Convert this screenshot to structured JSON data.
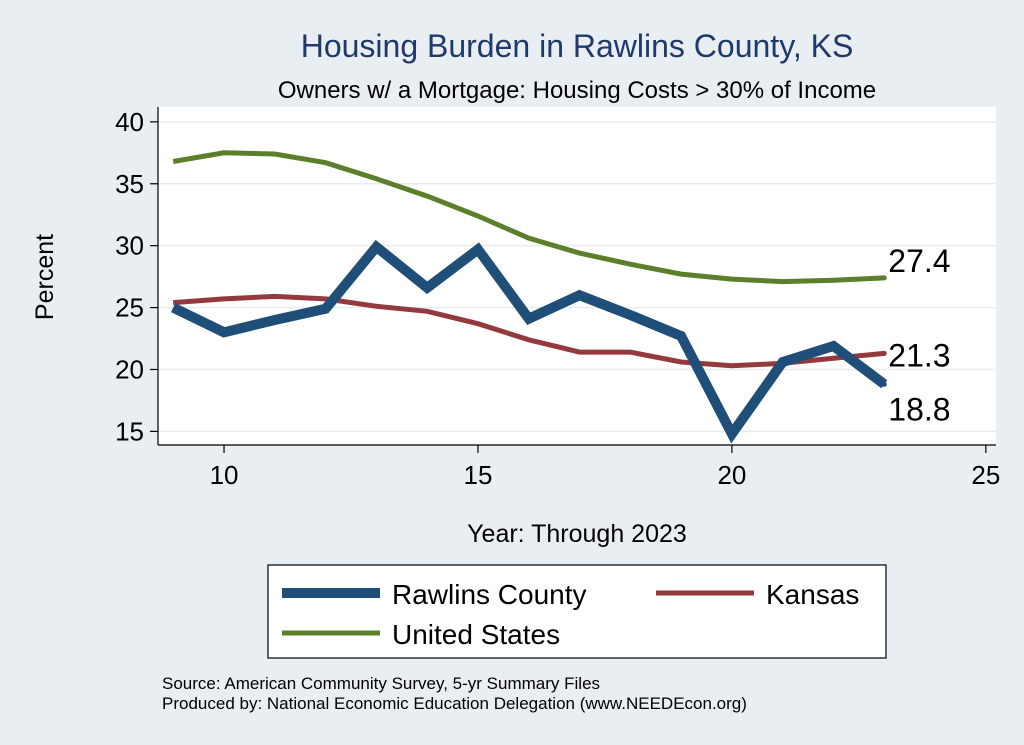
{
  "chart_data": {
    "type": "line",
    "title": "Housing Burden in Rawlins County, KS",
    "subtitle": "Owners w/ a Mortgage: Housing Costs > 30% of Income",
    "xlabel": "Year: Through 2023",
    "ylabel": "Percent",
    "xlim": [
      8.7,
      25.2
    ],
    "ylim": [
      13.9,
      41.2
    ],
    "xticks": [
      10,
      15,
      20,
      25
    ],
    "yticks": [
      15,
      20,
      25,
      30,
      35,
      40
    ],
    "grid": true,
    "legend_position": "bottom",
    "series": [
      {
        "name": "Rawlins County",
        "color": "#1f4e79",
        "x": [
          9,
          10,
          11,
          12,
          13,
          14,
          15,
          16,
          17,
          18,
          19,
          20,
          21,
          22,
          23
        ],
        "values": [
          25.0,
          23.0,
          24.0,
          24.9,
          29.9,
          26.6,
          29.7,
          24.1,
          26.0,
          24.4,
          22.7,
          14.8,
          20.6,
          21.9,
          18.8
        ],
        "end_label": "18.8"
      },
      {
        "name": "Kansas",
        "color": "#943a3e",
        "x": [
          9,
          10,
          11,
          12,
          13,
          14,
          15,
          16,
          17,
          18,
          19,
          20,
          21,
          22,
          23
        ],
        "values": [
          25.4,
          25.7,
          25.9,
          25.7,
          25.1,
          24.7,
          23.7,
          22.4,
          21.4,
          21.4,
          20.6,
          20.3,
          20.5,
          20.9,
          21.3
        ],
        "end_label": "21.3"
      },
      {
        "name": "United States",
        "color": "#5b7f2b",
        "x": [
          9,
          10,
          11,
          12,
          13,
          14,
          15,
          16,
          17,
          18,
          19,
          20,
          21,
          22,
          23
        ],
        "values": [
          36.8,
          37.5,
          37.4,
          36.7,
          35.4,
          34.0,
          32.4,
          30.6,
          29.4,
          28.5,
          27.7,
          27.3,
          27.1,
          27.2,
          27.4
        ],
        "end_label": "27.4"
      }
    ]
  },
  "notes": {
    "source": "Source: American Community Survey, 5-yr Summary Files",
    "produced_by": "Produced by: National Economic Education Delegation (www.NEEDEcon.org)"
  }
}
